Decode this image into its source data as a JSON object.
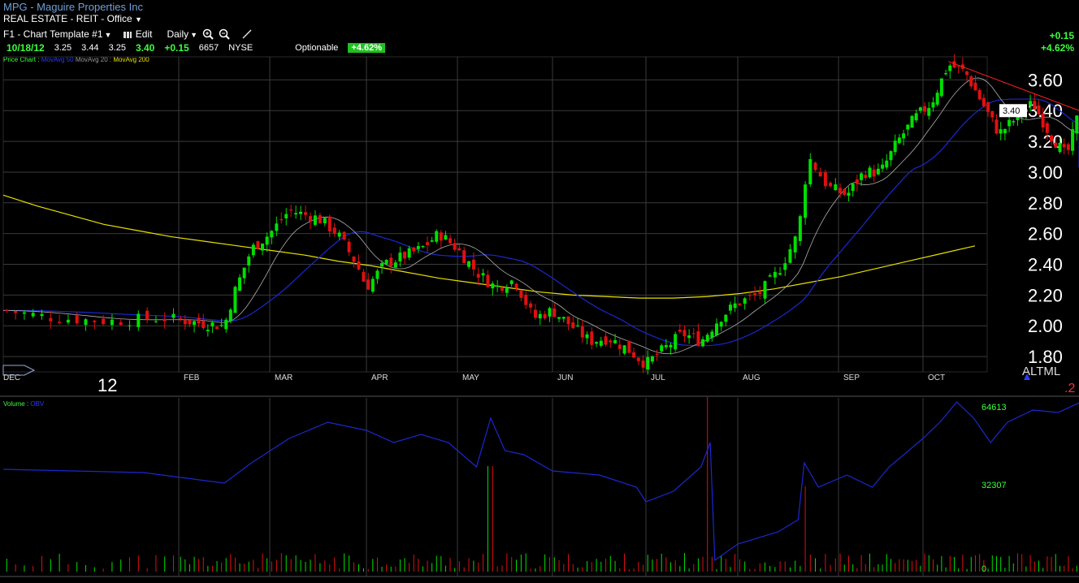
{
  "header": {
    "title": "MPG - Maguire Properties Inc",
    "sector": "REAL ESTATE - REIT - Office",
    "sector_menu_icon": "caret-down-icon"
  },
  "toolbar": {
    "template_label": "F1 - Chart Template #1",
    "edit_label": "Edit",
    "period_label": "Daily",
    "zoom_in_icon": "zoom-in-icon",
    "zoom_out_icon": "zoom-out-icon",
    "draw_icon": "pencil-icon"
  },
  "quote": {
    "date": "10/18/12",
    "open": "3.25",
    "high": "3.44",
    "low": "3.25",
    "close": "3.40",
    "change": "+0.15",
    "volume": "6657",
    "exchange": "NYSE",
    "optionable": "Optionable",
    "pct_badge": "+4.62%"
  },
  "right_summary": {
    "change": "+0.15",
    "pct": "+4.62%"
  },
  "legend": {
    "price_chart": "Price Chart :",
    "ma50": "MovAvg 50",
    "ma20": "MovAvg 20 :",
    "ma200": "MovAvg 200"
  },
  "volume_legend": {
    "volume": "Volume :",
    "obv": "OBV"
  },
  "year_label": "12",
  "altml_label": "ALTML",
  "corner_label": ".2",
  "colors": {
    "up": "#00e000",
    "down": "#e01010",
    "ma50": "#1a28d0",
    "ma20": "#b0b0b0",
    "ma200": "#e8e000",
    "trendline": "#ff2020",
    "grid": "#3a3a3a",
    "obv": "#1a28d0"
  },
  "chart_data": {
    "type": "line",
    "price_axis_ticks": [
      "3.60",
      "3.40",
      "3.20",
      "3.00",
      "2.80",
      "2.60",
      "2.40",
      "2.20",
      "2.00",
      "1.80"
    ],
    "price_axis_values": [
      3.6,
      3.4,
      3.2,
      3.0,
      2.8,
      2.6,
      2.4,
      2.2,
      2.0,
      1.8
    ],
    "ylim": [
      1.7,
      3.75
    ],
    "last_price_label": "3.40",
    "month_labels": [
      "DEC",
      "FEB",
      "MAR",
      "APR",
      "MAY",
      "JUN",
      "JUL",
      "AUG",
      "SEP",
      "OCT"
    ],
    "price_close_series": [
      {
        "m": 0.0,
        "v": 2.1
      },
      {
        "m": 0.3,
        "v": 2.05
      },
      {
        "m": 0.6,
        "v": 2.03
      },
      {
        "m": 0.9,
        "v": 2.05
      },
      {
        "m": 1.2,
        "v": 2.02
      },
      {
        "m": 1.5,
        "v": 2.0
      },
      {
        "m": 1.6,
        "v": 2.2
      },
      {
        "m": 1.8,
        "v": 2.5
      },
      {
        "m": 2.0,
        "v": 2.6
      },
      {
        "m": 2.2,
        "v": 2.75
      },
      {
        "m": 2.5,
        "v": 2.7
      },
      {
        "m": 2.7,
        "v": 2.6
      },
      {
        "m": 2.9,
        "v": 2.4
      },
      {
        "m": 3.0,
        "v": 2.25
      },
      {
        "m": 3.2,
        "v": 2.4
      },
      {
        "m": 3.4,
        "v": 2.45
      },
      {
        "m": 3.6,
        "v": 2.5
      },
      {
        "m": 3.8,
        "v": 2.6
      },
      {
        "m": 4.0,
        "v": 2.5
      },
      {
        "m": 4.2,
        "v": 2.35
      },
      {
        "m": 4.4,
        "v": 2.25
      },
      {
        "m": 4.6,
        "v": 2.3
      },
      {
        "m": 4.8,
        "v": 2.05
      },
      {
        "m": 5.0,
        "v": 2.1
      },
      {
        "m": 5.2,
        "v": 2.0
      },
      {
        "m": 5.4,
        "v": 1.9
      },
      {
        "m": 5.6,
        "v": 1.92
      },
      {
        "m": 5.8,
        "v": 1.85
      },
      {
        "m": 6.0,
        "v": 1.75
      },
      {
        "m": 6.2,
        "v": 1.85
      },
      {
        "m": 6.4,
        "v": 1.95
      },
      {
        "m": 6.6,
        "v": 1.9
      },
      {
        "m": 6.8,
        "v": 2.05
      },
      {
        "m": 7.0,
        "v": 2.15
      },
      {
        "m": 7.2,
        "v": 2.2
      },
      {
        "m": 7.4,
        "v": 2.35
      },
      {
        "m": 7.6,
        "v": 2.6
      },
      {
        "m": 7.7,
        "v": 3.1
      },
      {
        "m": 7.9,
        "v": 2.9
      },
      {
        "m": 8.1,
        "v": 2.85
      },
      {
        "m": 8.3,
        "v": 3.0
      },
      {
        "m": 8.5,
        "v": 3.0
      },
      {
        "m": 8.7,
        "v": 3.2
      },
      {
        "m": 8.9,
        "v": 3.35
      },
      {
        "m": 9.1,
        "v": 3.45
      },
      {
        "m": 9.3,
        "v": 3.7
      },
      {
        "m": 9.5,
        "v": 3.65
      },
      {
        "m": 9.7,
        "v": 3.45
      },
      {
        "m": 9.9,
        "v": 3.25
      },
      {
        "m": 10.1,
        "v": 3.35
      },
      {
        "m": 10.3,
        "v": 3.45
      },
      {
        "m": 10.5,
        "v": 3.25
      },
      {
        "m": 10.7,
        "v": 3.1
      },
      {
        "m": 10.85,
        "v": 3.4
      }
    ],
    "ma200_series": [
      2.85,
      2.78,
      2.72,
      2.66,
      2.62,
      2.58,
      2.55,
      2.52,
      2.49,
      2.46,
      2.42,
      2.39,
      2.35,
      2.31,
      2.28,
      2.25,
      2.22,
      2.2,
      2.19,
      2.18,
      2.18,
      2.19,
      2.21,
      2.24,
      2.28,
      2.32,
      2.37,
      2.42,
      2.47,
      2.52
    ],
    "obv_axis_ticks": [
      "64613",
      "32307",
      "0"
    ]
  }
}
